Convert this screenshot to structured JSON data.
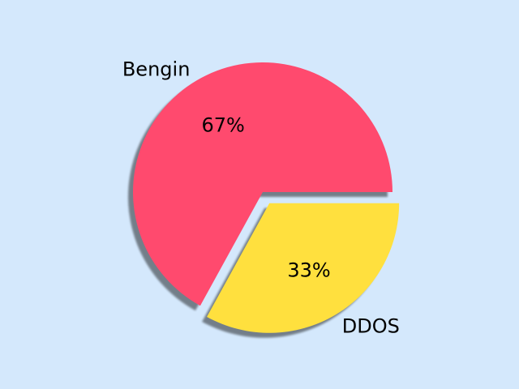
{
  "background": "#d4e8fc",
  "chart_data": {
    "type": "pie",
    "title": "",
    "slices": [
      {
        "label": "Bengin",
        "value": 67,
        "pct_label": "67%",
        "color": "#ff4a6e",
        "exploded": false
      },
      {
        "label": "DDOS",
        "value": 33,
        "pct_label": "33%",
        "color": "#ffe03e",
        "exploded": true
      }
    ],
    "shadow": true,
    "start_angle_deg": 0,
    "direction": "counterclockwise"
  }
}
